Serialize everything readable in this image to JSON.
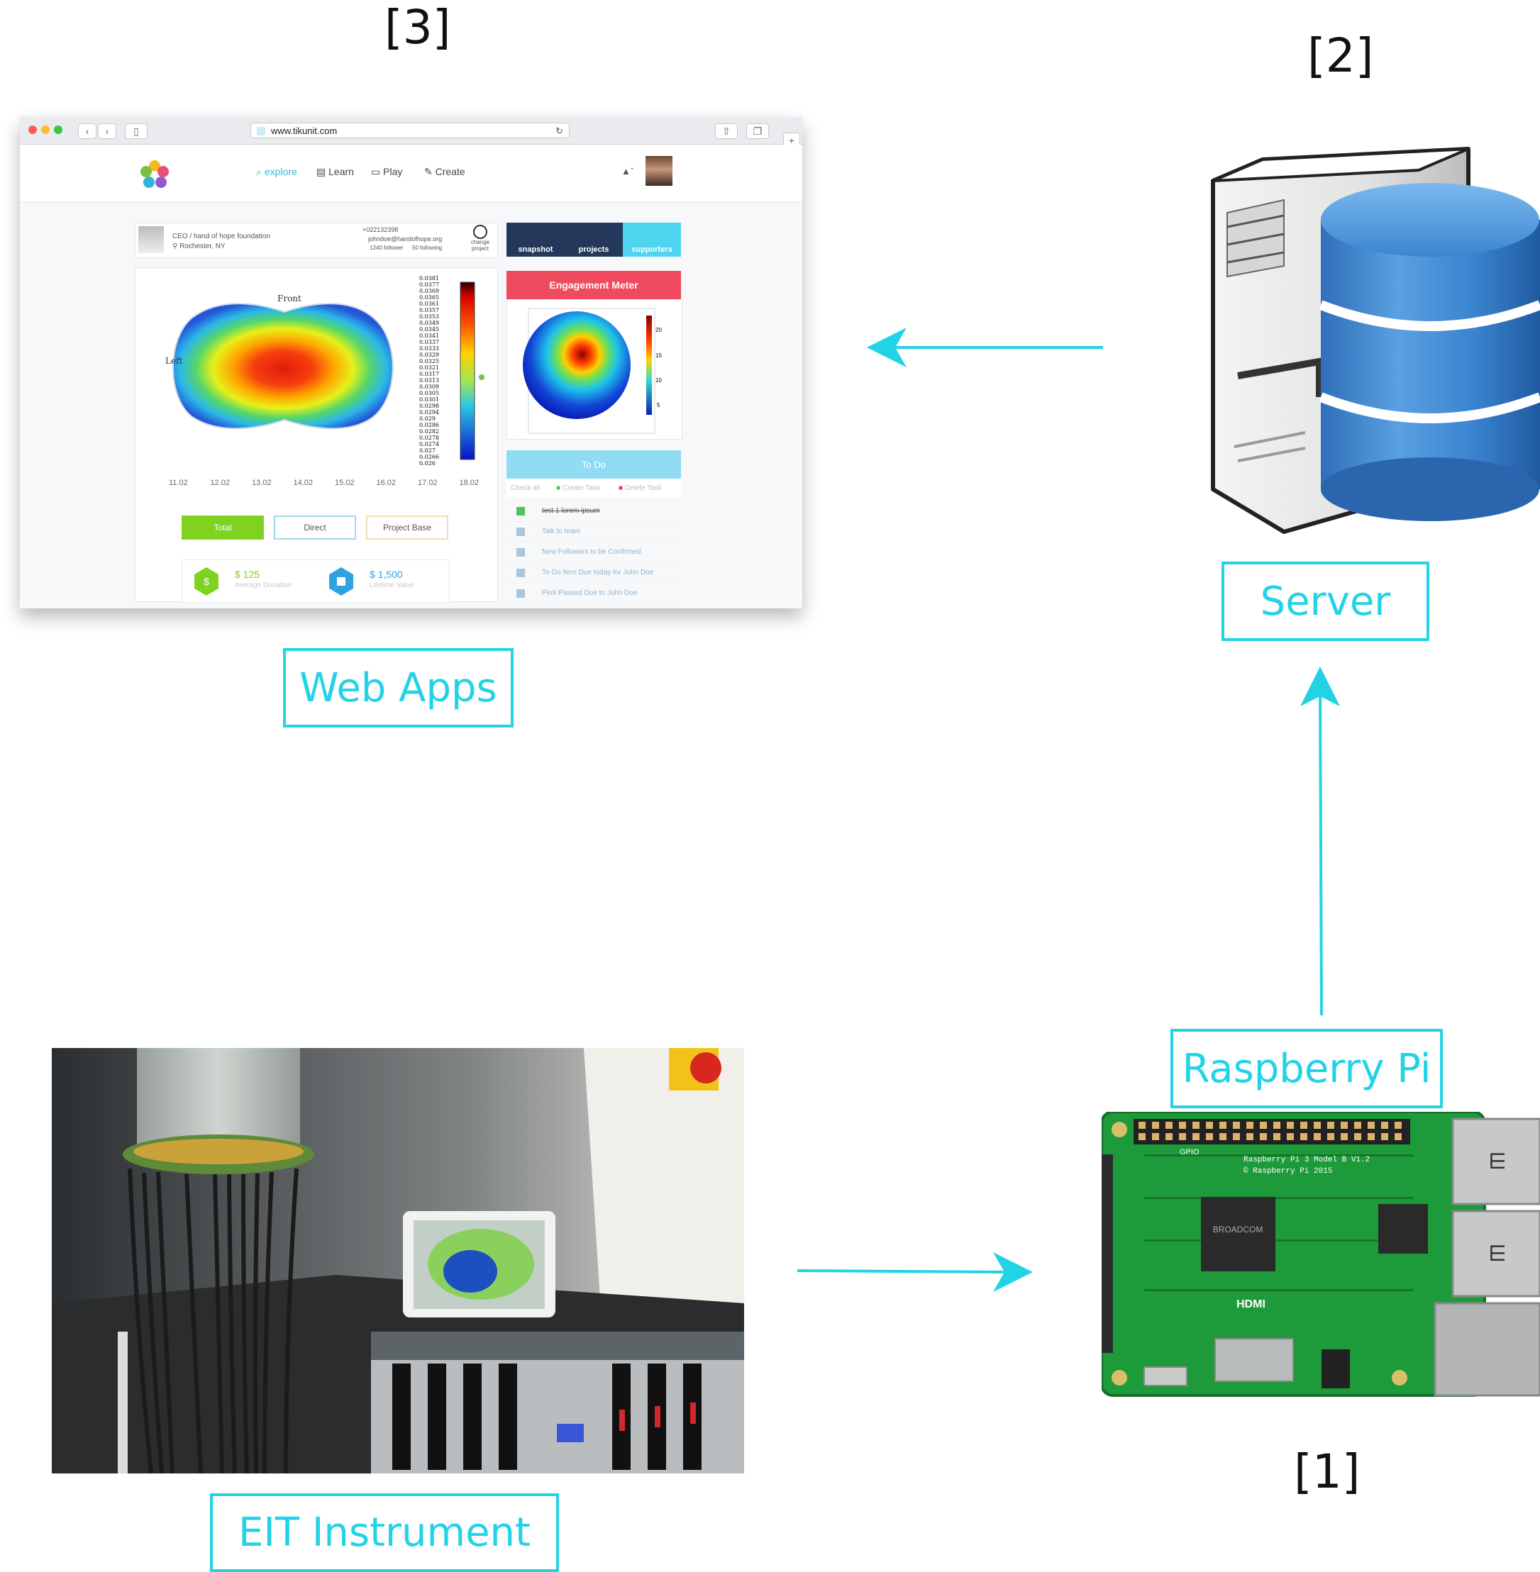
{
  "diagram": {
    "refs": {
      "instrument": "[1]",
      "server": "[2]",
      "web_apps": "[3]"
    },
    "labels": {
      "web_apps": "Web Apps",
      "server": "Server",
      "raspberry_pi": "Raspberry Pi",
      "eit_instrument": "EIT Instrument"
    },
    "arrow_color": "#22d3e6",
    "flow": [
      "EIT Instrument",
      "Raspberry Pi",
      "Server",
      "Web Apps"
    ]
  },
  "web_app": {
    "url": "www.tikunit.com",
    "menu": {
      "explore": "explore",
      "learn": "Learn",
      "play": "Play",
      "create": "Create"
    },
    "profile": {
      "title": "CEO / hand of hope foundation",
      "location": "Rochester, NY",
      "phone": "+022132398",
      "email": "johndoe@handofhope.org",
      "followers": "1240 follower",
      "following": "50 following",
      "change_project": "change project"
    },
    "tabs": {
      "snapshot": "snapshot",
      "projects": "projects",
      "supporters": "supporters"
    },
    "heatmap": {
      "front_label": "Front",
      "left_label": "Left",
      "colorbar_values": [
        "0.0381",
        "0.0377",
        "0.0369",
        "0.0365",
        "0.0361",
        "0.0357",
        "0.0353",
        "0.0349",
        "0.0345",
        "0.0341",
        "0.0337",
        "0.0333",
        "0.0329",
        "0.0325",
        "0.0321",
        "0.0317",
        "0.0313",
        "0.0309",
        "0.0305",
        "0.0301",
        "0.0298",
        "0.0294",
        "0.029",
        "0.0286",
        "0.0282",
        "0.0278",
        "0.0274",
        "0.027",
        "0.0266",
        "0.026"
      ],
      "x_ticks": [
        "11.02",
        "12.02",
        "13.02",
        "14.02",
        "15.02",
        "16.02",
        "17.02",
        "18.02"
      ]
    },
    "engagement": {
      "title": "Engagement Meter",
      "scale": [
        "20",
        "15",
        "10",
        "5"
      ]
    },
    "buttons": {
      "total": "Total",
      "direct": "Direct",
      "project_base": "Project Base"
    },
    "stats": [
      {
        "value": "$ 125",
        "label": "Average Donation",
        "icon": "dollar-icon"
      },
      {
        "value": "$ 1,500",
        "label": "Lifetime Value",
        "icon": "bag-icon"
      }
    ],
    "todo": {
      "title": "To Do",
      "actions": {
        "check_all": "Check all",
        "create": "Create Task",
        "delete": "Delete Task"
      },
      "items": [
        "test 1 lorem ipsum",
        "Talk to team",
        "New Followers to be Confirmed",
        "To-Do Item Due today for John Doe",
        "Perk Passed Due to John Doe"
      ]
    }
  },
  "raspberry_pi_board": {
    "model": "Raspberry Pi 3 Model B V1.2",
    "copyright": "© Raspberry Pi 2015",
    "chip": "BROADCOM",
    "hdmi": "HDMI",
    "gpio": "GPIO"
  }
}
